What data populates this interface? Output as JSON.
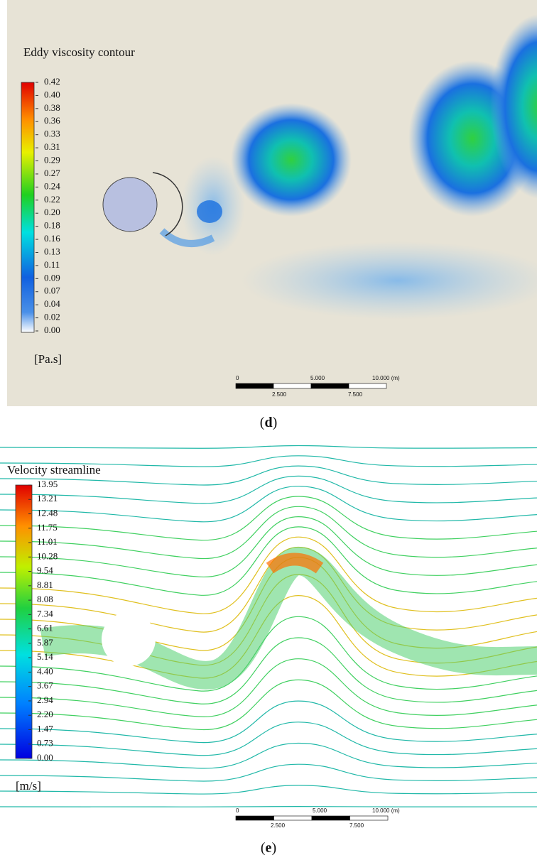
{
  "panels": [
    {
      "title": "Eddy viscosity contour",
      "legend_labels": [
        "0.42",
        "0.40",
        "0.38",
        "0.36",
        "0.33",
        "0.31",
        "0.29",
        "0.27",
        "0.24",
        "0.22",
        "0.20",
        "0.18",
        "0.16",
        "0.13",
        "0.11",
        "0.09",
        "0.07",
        "0.04",
        "0.02",
        "0.00"
      ],
      "unit": "[Pa.s]",
      "scale_top": [
        "0",
        "5.000",
        "10.000 (m)"
      ],
      "scale_bottom": [
        "2.500",
        "7.500"
      ],
      "caption": [
        "(",
        "d",
        ")"
      ]
    },
    {
      "title": "Velocity streamline",
      "legend_labels": [
        "13.95",
        "13.21",
        "12.48",
        "11.75",
        "11.01",
        "10.28",
        "9.54",
        "8.81",
        "8.08",
        "7.34",
        "6.61",
        "5.87",
        "5.14",
        "4.40",
        "3.67",
        "2.94",
        "2.20",
        "1.47",
        "0.73",
        "0.00"
      ],
      "unit": "[m/s]",
      "scale_top": [
        "0",
        "5.000",
        "10.000 (m)"
      ],
      "scale_bottom": [
        "2.500",
        "7.500"
      ],
      "caption": [
        "(",
        "e",
        ")"
      ]
    }
  ]
}
